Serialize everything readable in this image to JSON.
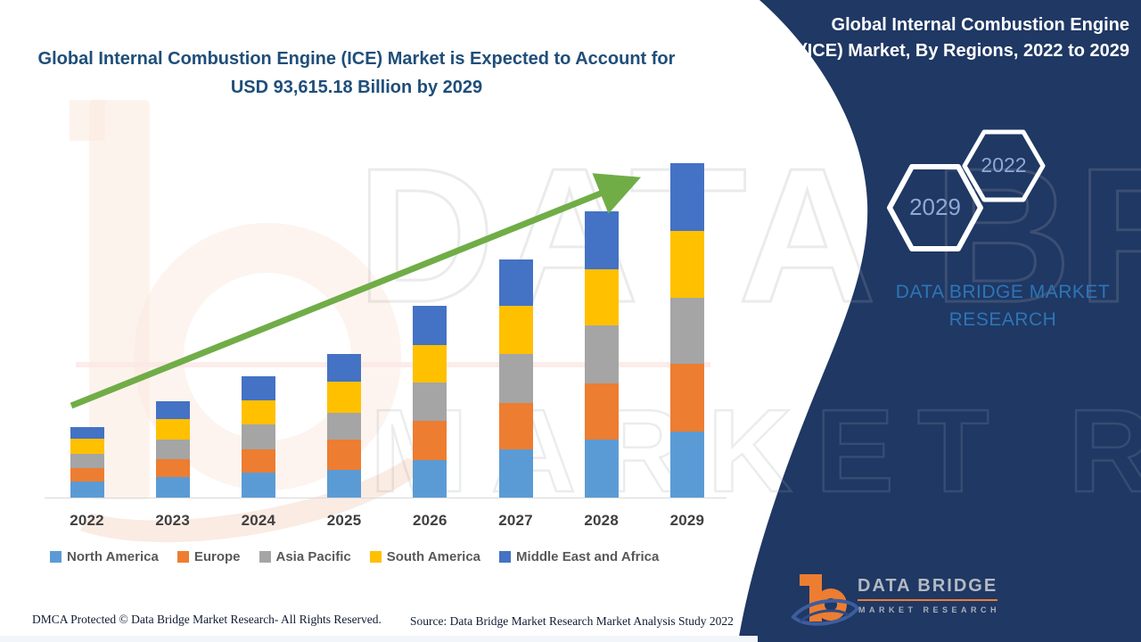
{
  "left_panel": {
    "headline": "Global Internal Combustion Engine (ICE) Market is Expected to Account for USD 93,615.18 Billion by 2029",
    "footer_dmca": "DMCA Protected © Data Bridge Market Research- All Rights Reserved.",
    "footer_source": "Source: Data Bridge Market Research Market Analysis Study 2022"
  },
  "right_panel": {
    "title": "Global Internal Combustion Engine (ICE) Market, By Regions, 2022 to 2029",
    "background_color": "#1f3864",
    "hexagons": {
      "front_year": "2029",
      "back_year": "2022",
      "outline_color": "#ffffff",
      "label_color": "#8fa9d6"
    },
    "brand_text": "DATA BRIDGE MARKET RESEARCH",
    "brand_text_color": "#2e75b6",
    "logo": {
      "name": "DATA BRIDGE",
      "subtitle": "MARKET RESEARCH",
      "accent_color": "#ed7d31"
    }
  },
  "watermarks": {
    "text_upper": "DATA BRI",
    "text_lower": "MARKET RESEARCH"
  },
  "chart_data": {
    "type": "bar",
    "stacked": true,
    "title": "Global Internal Combustion Engine (ICE) Market, By Regions, 2022 to 2029",
    "xlabel": "",
    "ylabel": "",
    "unit": "USD Billion (estimated; no y-axis shown, 2029 total labeled as 93,615.18)",
    "categories": [
      "2022",
      "2023",
      "2024",
      "2025",
      "2026",
      "2027",
      "2028",
      "2029"
    ],
    "series": [
      {
        "name": "North America",
        "color": "#5b9bd5",
        "values": [
          4390,
          5670,
          6920,
          7810,
          10560,
          13480,
          16230,
          18550
        ]
      },
      {
        "name": "Europe",
        "color": "#ed7d31",
        "values": [
          3920,
          5170,
          6670,
          8310,
          10810,
          12980,
          15800,
          18900
        ]
      },
      {
        "name": "Asia Pacific",
        "color": "#a5a5a5",
        "values": [
          3990,
          5420,
          6820,
          7490,
          10810,
          13730,
          16230,
          18550
        ]
      },
      {
        "name": "South America",
        "color": "#ffc000",
        "values": [
          4170,
          5820,
          6820,
          8740,
          10410,
          13480,
          15650,
          18720
        ]
      },
      {
        "name": "Middle East and Africa",
        "color": "#4472c4",
        "values": [
          3320,
          4990,
          6670,
          7910,
          10980,
          13060,
          16230,
          18895.18
        ]
      }
    ],
    "totals": [
      19790,
      27070,
      33900,
      40260,
      53570,
      66730,
      80140,
      93615.18
    ],
    "ylim": [
      0,
      100000
    ],
    "grid": false,
    "legend_position": "bottom",
    "axis_line_color": "#d9d9d9",
    "tick_label_color": "#404040",
    "trend_arrow": {
      "color": "#70ad47",
      "direction": "up"
    }
  }
}
